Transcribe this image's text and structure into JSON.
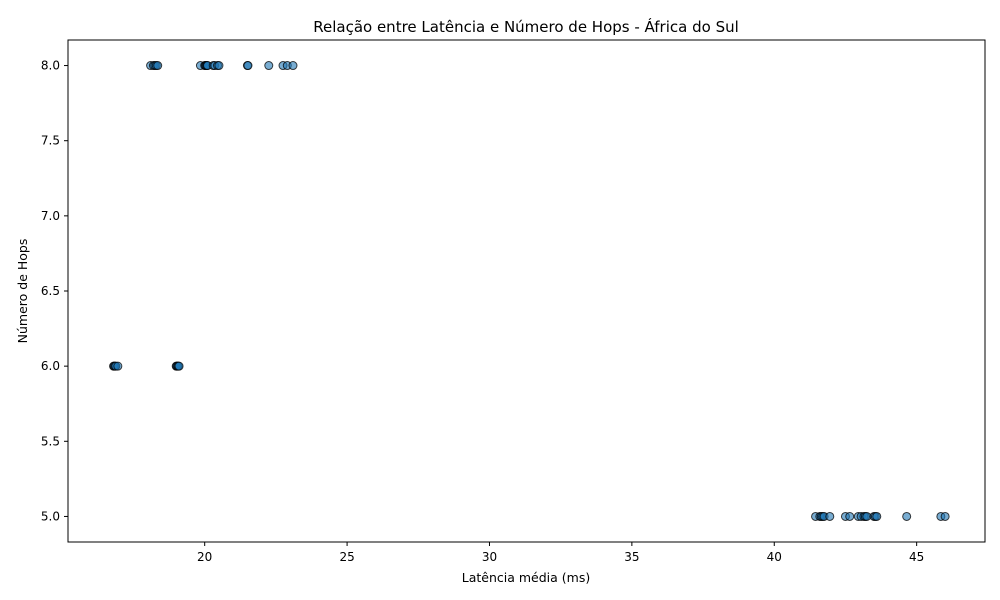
{
  "chart_data": {
    "type": "scatter",
    "title": "Relação entre Latência e Número de Hops - África do Sul",
    "xlabel": "Latência média (ms)",
    "ylabel": "Número de Hops",
    "xlim": [
      15.2,
      47.4
    ],
    "ylim": [
      4.83,
      8.17
    ],
    "xticks": [
      20,
      25,
      30,
      35,
      40,
      45
    ],
    "xtick_labels": [
      "20",
      "25",
      "30",
      "35",
      "40",
      "45"
    ],
    "yticks": [
      5.0,
      5.5,
      6.0,
      6.5,
      7.0,
      7.5,
      8.0
    ],
    "ytick_labels": [
      "5.0",
      "5.5",
      "6.0",
      "6.5",
      "7.0",
      "7.5",
      "8.0"
    ],
    "grid": false,
    "point_color": "#1f77b4",
    "point_alpha": 0.6,
    "edge_color": "#000000",
    "points": [
      {
        "x": 18.1,
        "y": 8
      },
      {
        "x": 18.2,
        "y": 8
      },
      {
        "x": 18.25,
        "y": 8
      },
      {
        "x": 18.3,
        "y": 8
      },
      {
        "x": 18.35,
        "y": 8
      },
      {
        "x": 19.85,
        "y": 8
      },
      {
        "x": 20.0,
        "y": 8
      },
      {
        "x": 20.03,
        "y": 8
      },
      {
        "x": 20.05,
        "y": 8
      },
      {
        "x": 20.08,
        "y": 8
      },
      {
        "x": 20.1,
        "y": 8
      },
      {
        "x": 20.3,
        "y": 8
      },
      {
        "x": 20.35,
        "y": 8
      },
      {
        "x": 20.45,
        "y": 8
      },
      {
        "x": 20.5,
        "y": 8
      },
      {
        "x": 21.5,
        "y": 8
      },
      {
        "x": 21.52,
        "y": 8
      },
      {
        "x": 22.25,
        "y": 8
      },
      {
        "x": 22.75,
        "y": 8
      },
      {
        "x": 22.9,
        "y": 8
      },
      {
        "x": 23.1,
        "y": 8
      },
      {
        "x": 16.8,
        "y": 6
      },
      {
        "x": 16.82,
        "y": 6
      },
      {
        "x": 16.85,
        "y": 6
      },
      {
        "x": 16.88,
        "y": 6
      },
      {
        "x": 16.95,
        "y": 6
      },
      {
        "x": 19.0,
        "y": 6
      },
      {
        "x": 19.02,
        "y": 6
      },
      {
        "x": 19.05,
        "y": 6
      },
      {
        "x": 19.07,
        "y": 6
      },
      {
        "x": 19.1,
        "y": 6
      },
      {
        "x": 41.45,
        "y": 5
      },
      {
        "x": 41.6,
        "y": 5
      },
      {
        "x": 41.65,
        "y": 5
      },
      {
        "x": 41.7,
        "y": 5
      },
      {
        "x": 41.75,
        "y": 5
      },
      {
        "x": 41.95,
        "y": 5
      },
      {
        "x": 42.5,
        "y": 5
      },
      {
        "x": 42.65,
        "y": 5
      },
      {
        "x": 42.95,
        "y": 5
      },
      {
        "x": 43.05,
        "y": 5
      },
      {
        "x": 43.15,
        "y": 5
      },
      {
        "x": 43.2,
        "y": 5
      },
      {
        "x": 43.25,
        "y": 5
      },
      {
        "x": 43.5,
        "y": 5
      },
      {
        "x": 43.55,
        "y": 5
      },
      {
        "x": 43.6,
        "y": 5
      },
      {
        "x": 44.65,
        "y": 5
      },
      {
        "x": 45.85,
        "y": 5
      },
      {
        "x": 46.0,
        "y": 5
      }
    ]
  }
}
